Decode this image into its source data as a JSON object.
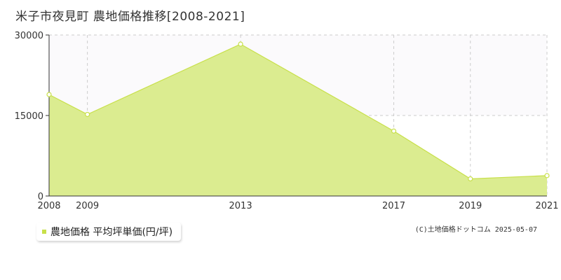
{
  "colors": {
    "area_fill": "#dbec90",
    "area_line": "#c8e04a",
    "point_stroke": "#c8e04a",
    "grid": "#cccccc",
    "plot_background_upper": "#fbfafc"
  },
  "legend": {
    "label": "農地価格 平均坪単価(円/坪)"
  },
  "copyright": "(C)土地価格ドットコム 2025-05-07",
  "chart_data": {
    "type": "area",
    "title": "米子市夜見町 農地価格推移[2008-2021]",
    "xlabel": "",
    "ylabel": "",
    "x": [
      2008,
      2009,
      2013,
      2017,
      2019,
      2021
    ],
    "series": [
      {
        "name": "農地価格 平均坪単価(円/坪)",
        "values": [
          18900,
          15200,
          28300,
          12100,
          3200,
          3800
        ]
      }
    ],
    "xlim": [
      2008,
      2021
    ],
    "ylim": [
      0,
      30000
    ],
    "x_ticks": [
      2008,
      2009,
      2013,
      2017,
      2019,
      2021
    ],
    "y_ticks": [
      0,
      15000,
      30000
    ],
    "x_tick_labels": [
      "2008",
      "2009",
      "2013",
      "2017",
      "2019",
      "2021"
    ],
    "y_tick_labels": [
      "0",
      "15000",
      "30000"
    ],
    "grid": true,
    "legend_position": "bottom-left"
  }
}
